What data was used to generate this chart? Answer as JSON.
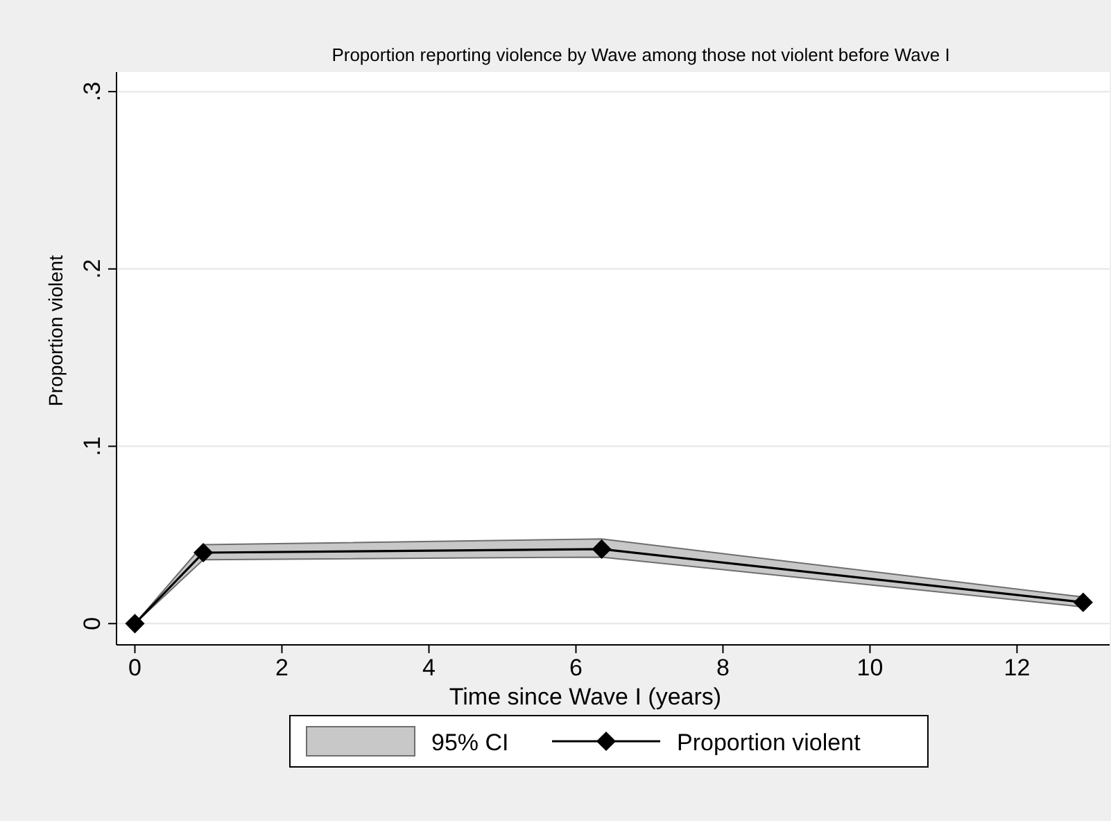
{
  "chart_data": {
    "type": "line",
    "title": "Proportion reporting violence by Wave among those not violent before Wave I",
    "xlabel": "Time since Wave I (years)",
    "ylabel": "Proportion violent",
    "x": [
      0,
      0.93,
      6.35,
      12.9
    ],
    "series": [
      {
        "name": "Proportion violent",
        "color": "#000000",
        "values": [
          0,
          0.04,
          0.042,
          0.012
        ],
        "lower": [
          0,
          0.036,
          0.0375,
          0.0094
        ],
        "upper": [
          0,
          0.0445,
          0.0477,
          0.015
        ],
        "marker": "diamond"
      }
    ],
    "annotations": [
      "95% CI"
    ],
    "xlim": [
      -0.25,
      13.26
    ],
    "ylim": [
      -0.012,
      0.311
    ],
    "xticks": [
      0,
      2,
      4,
      6,
      8,
      10,
      12
    ],
    "yticks": [
      {
        "value": 0,
        "label": "0"
      },
      {
        "value": 0.1,
        "label": ".1"
      },
      {
        "value": 0.2,
        "label": ".2"
      },
      {
        "value": 0.3,
        "label": ".3"
      }
    ],
    "grid": "y",
    "legend": "bottom",
    "line_style": "solid"
  }
}
